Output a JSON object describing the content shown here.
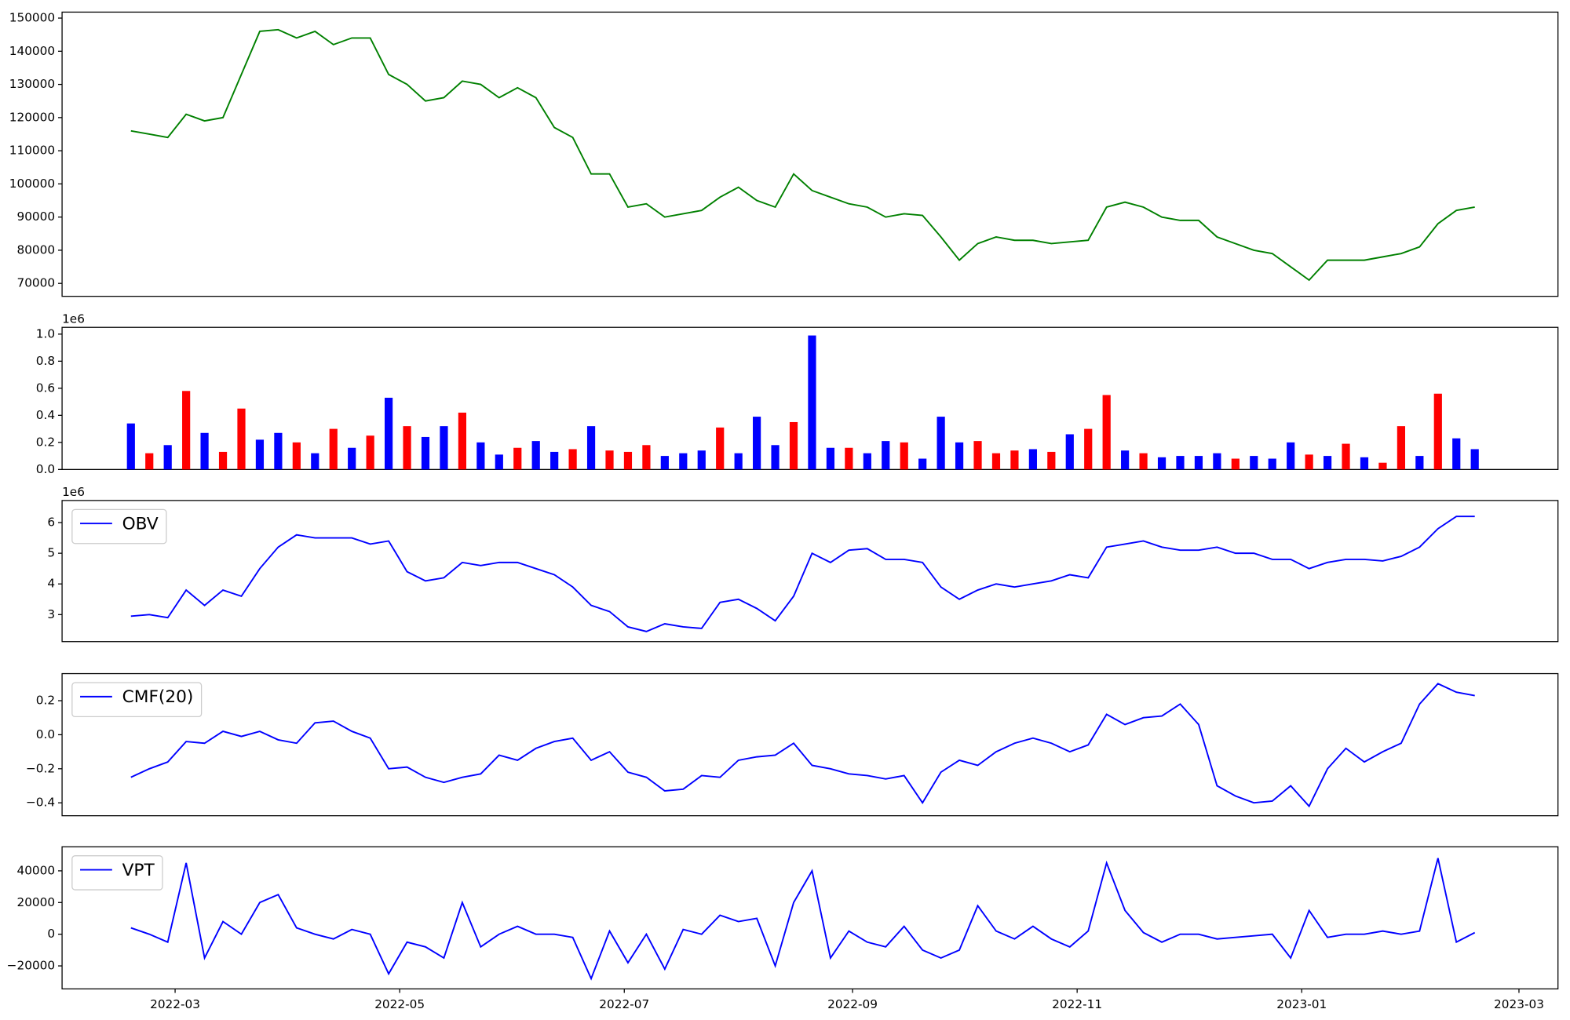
{
  "chart_data": [
    {
      "type": "line",
      "color": "#008000",
      "x": [
        47,
        52,
        57,
        62,
        67,
        72,
        77,
        82,
        87,
        92,
        97,
        102,
        107,
        112,
        117,
        122,
        127,
        132,
        137,
        142,
        147,
        152,
        157,
        162,
        167,
        172,
        177,
        182,
        187,
        192,
        197,
        202,
        207,
        212,
        217,
        222,
        227,
        232,
        237,
        242,
        247,
        252,
        257,
        262,
        267,
        272,
        277,
        282,
        287,
        292,
        297,
        302,
        307,
        312,
        317,
        322,
        327,
        332,
        337,
        342,
        347,
        352,
        357,
        362,
        367,
        372,
        377,
        382,
        387,
        392,
        397,
        402,
        407,
        412
      ],
      "values": [
        116000,
        115000,
        114000,
        121000,
        119000,
        120000,
        133000,
        146000,
        146500,
        144000,
        146000,
        142000,
        144000,
        144000,
        133000,
        130000,
        125000,
        126000,
        131000,
        130000,
        126000,
        129000,
        126000,
        117000,
        114000,
        103000,
        103000,
        93000,
        94000,
        90000,
        91000,
        92000,
        96000,
        99000,
        95000,
        93000,
        103000,
        98000,
        96000,
        94000,
        93000,
        90000,
        91000,
        90500,
        84000,
        77000,
        82000,
        84000,
        83000,
        83000,
        82000,
        82500,
        83000,
        93000,
        94500,
        93000,
        90000,
        89000,
        89000,
        84000,
        82000,
        80000,
        79000,
        75000,
        71000,
        77000,
        77000,
        77000,
        78000,
        79000,
        81000,
        88000,
        92000,
        93000
      ],
      "xlim": [
        28.3,
        434.6
      ],
      "ylim": [
        66100,
        151800
      ],
      "yticks": [
        70000,
        80000,
        90000,
        100000,
        110000,
        120000,
        130000,
        140000,
        150000
      ]
    },
    {
      "type": "bar",
      "offset_label": "1e6",
      "x": [
        47,
        52,
        57,
        62,
        67,
        72,
        77,
        82,
        87,
        92,
        97,
        102,
        107,
        112,
        117,
        122,
        127,
        132,
        137,
        142,
        147,
        152,
        157,
        162,
        167,
        172,
        177,
        182,
        187,
        192,
        197,
        202,
        207,
        212,
        217,
        222,
        227,
        232,
        237,
        242,
        247,
        252,
        257,
        262,
        267,
        272,
        277,
        282,
        287,
        292,
        297,
        302,
        307,
        312,
        317,
        322,
        327,
        332,
        337,
        342,
        347,
        352,
        357,
        362,
        367,
        372,
        377,
        382,
        387,
        392,
        397,
        402,
        407,
        412
      ],
      "values": [
        0.34,
        0.12,
        0.18,
        0.58,
        0.27,
        0.13,
        0.45,
        0.22,
        0.27,
        0.2,
        0.12,
        0.3,
        0.16,
        0.25,
        0.53,
        0.32,
        0.24,
        0.32,
        0.42,
        0.2,
        0.11,
        0.16,
        0.21,
        0.13,
        0.15,
        0.32,
        0.14,
        0.13,
        0.18,
        0.1,
        0.12,
        0.14,
        0.31,
        0.12,
        0.39,
        0.18,
        0.35,
        0.99,
        0.16,
        0.16,
        0.12,
        0.21,
        0.2,
        0.08,
        0.39,
        0.2,
        0.21,
        0.12,
        0.14,
        0.15,
        0.13,
        0.26,
        0.3,
        0.55,
        0.14,
        0.12,
        0.09,
        0.1,
        0.1,
        0.12,
        0.08,
        0.1,
        0.08,
        0.2,
        0.11,
        0.1,
        0.19,
        0.09,
        0.05,
        0.32,
        0.1,
        0.56,
        0.23,
        0.15
      ],
      "colors": [
        "#0000ff",
        "#ff0000",
        "#0000ff",
        "#ff0000",
        "#0000ff",
        "#ff0000",
        "#ff0000",
        "#0000ff",
        "#0000ff",
        "#ff0000",
        "#0000ff",
        "#ff0000",
        "#0000ff",
        "#ff0000",
        "#0000ff",
        "#ff0000",
        "#0000ff",
        "#0000ff",
        "#ff0000",
        "#0000ff",
        "#0000ff",
        "#ff0000",
        "#0000ff",
        "#0000ff",
        "#ff0000",
        "#0000ff",
        "#ff0000",
        "#ff0000",
        "#ff0000",
        "#0000ff",
        "#0000ff",
        "#0000ff",
        "#ff0000",
        "#0000ff",
        "#0000ff",
        "#0000ff",
        "#ff0000",
        "#0000ff",
        "#0000ff",
        "#ff0000",
        "#0000ff",
        "#0000ff",
        "#ff0000",
        "#0000ff",
        "#0000ff",
        "#0000ff",
        "#ff0000",
        "#ff0000",
        "#ff0000",
        "#0000ff",
        "#ff0000",
        "#0000ff",
        "#ff0000",
        "#ff0000",
        "#0000ff",
        "#ff0000",
        "#0000ff",
        "#0000ff",
        "#0000ff",
        "#0000ff",
        "#ff0000",
        "#0000ff",
        "#0000ff",
        "#0000ff",
        "#ff0000",
        "#0000ff",
        "#ff0000",
        "#0000ff",
        "#ff0000",
        "#ff0000",
        "#0000ff",
        "#ff0000",
        "#0000ff",
        "#0000ff"
      ],
      "xlim": [
        28.3,
        434.6
      ],
      "ylim": [
        0,
        1.05
      ],
      "yticks": [
        {
          "value": 0,
          "label": "0.0"
        },
        0.2,
        0.4,
        0.6,
        0.8,
        {
          "value": 1,
          "label": "1.0"
        }
      ]
    },
    {
      "type": "line",
      "offset_label": "1e6",
      "legend": "upper left",
      "x": [
        47,
        52,
        57,
        62,
        67,
        72,
        77,
        82,
        87,
        92,
        97,
        102,
        107,
        112,
        117,
        122,
        127,
        132,
        137,
        142,
        147,
        152,
        157,
        162,
        167,
        172,
        177,
        182,
        187,
        192,
        197,
        202,
        207,
        212,
        217,
        222,
        227,
        232,
        237,
        242,
        247,
        252,
        257,
        262,
        267,
        272,
        277,
        282,
        287,
        292,
        297,
        302,
        307,
        312,
        317,
        322,
        327,
        332,
        337,
        342,
        347,
        352,
        357,
        362,
        367,
        372,
        377,
        382,
        387,
        392,
        397,
        402,
        407,
        412
      ],
      "series": [
        {
          "name": "OBV",
          "color": "#0000ff",
          "values": [
            2.95,
            3.0,
            2.9,
            3.8,
            3.3,
            3.8,
            3.6,
            4.5,
            5.2,
            5.6,
            5.5,
            5.5,
            5.5,
            5.3,
            5.4,
            4.4,
            4.1,
            4.2,
            4.7,
            4.6,
            4.7,
            4.7,
            4.5,
            4.3,
            3.9,
            3.3,
            3.1,
            2.6,
            2.45,
            2.7,
            2.6,
            2.55,
            3.4,
            3.5,
            3.2,
            2.8,
            3.6,
            5.0,
            4.7,
            5.1,
            5.15,
            4.8,
            4.8,
            4.7,
            3.9,
            3.5,
            3.8,
            4.0,
            3.9,
            4.0,
            4.1,
            4.3,
            4.2,
            5.2,
            5.3,
            5.4,
            5.2,
            5.1,
            5.1,
            5.2,
            5.0,
            5.0,
            4.8,
            4.8,
            4.5,
            4.7,
            4.8,
            4.8,
            4.75,
            4.9,
            5.2,
            5.8,
            6.2,
            6.2
          ]
        }
      ],
      "xlim": [
        28.3,
        434.6
      ],
      "ylim": [
        2.12,
        6.72
      ],
      "yticks": [
        3,
        4,
        5,
        6
      ]
    },
    {
      "type": "line",
      "legend": "upper left",
      "x": [
        47,
        52,
        57,
        62,
        67,
        72,
        77,
        82,
        87,
        92,
        97,
        102,
        107,
        112,
        117,
        122,
        127,
        132,
        137,
        142,
        147,
        152,
        157,
        162,
        167,
        172,
        177,
        182,
        187,
        192,
        197,
        202,
        207,
        212,
        217,
        222,
        227,
        232,
        237,
        242,
        247,
        252,
        257,
        262,
        267,
        272,
        277,
        282,
        287,
        292,
        297,
        302,
        307,
        312,
        317,
        322,
        327,
        332,
        337,
        342,
        347,
        352,
        357,
        362,
        367,
        372,
        377,
        382,
        387,
        392,
        397,
        402,
        407,
        412
      ],
      "series": [
        {
          "name": "CMF(20)",
          "color": "#0000ff",
          "values": [
            -0.25,
            -0.2,
            -0.16,
            -0.04,
            -0.05,
            0.02,
            -0.01,
            0.02,
            -0.03,
            -0.05,
            0.07,
            0.08,
            0.02,
            -0.02,
            -0.2,
            -0.19,
            -0.25,
            -0.28,
            -0.25,
            -0.23,
            -0.12,
            -0.15,
            -0.08,
            -0.04,
            -0.02,
            -0.15,
            -0.1,
            -0.22,
            -0.25,
            -0.33,
            -0.32,
            -0.24,
            -0.25,
            -0.15,
            -0.13,
            -0.12,
            -0.05,
            -0.18,
            -0.2,
            -0.23,
            -0.24,
            -0.26,
            -0.24,
            -0.4,
            -0.22,
            -0.15,
            -0.18,
            -0.1,
            -0.05,
            -0.02,
            -0.05,
            -0.1,
            -0.06,
            0.12,
            0.06,
            0.1,
            0.11,
            0.18,
            0.06,
            -0.3,
            -0.36,
            -0.4,
            -0.39,
            -0.3,
            -0.42,
            -0.2,
            -0.08,
            -0.16,
            -0.1,
            -0.05,
            0.18,
            0.3,
            0.25,
            0.23
          ]
        }
      ],
      "xlim": [
        28.3,
        434.6
      ],
      "ylim": [
        -0.476,
        0.359
      ],
      "yticks": [
        {
          "value": -0.4,
          "label": "−0.4"
        },
        {
          "value": -0.2,
          "label": "−0.2"
        },
        {
          "value": 0,
          "label": "0.0"
        },
        0.2
      ]
    },
    {
      "type": "line",
      "legend": "upper left",
      "x": [
        47,
        52,
        57,
        62,
        67,
        72,
        77,
        82,
        87,
        92,
        97,
        102,
        107,
        112,
        117,
        122,
        127,
        132,
        137,
        142,
        147,
        152,
        157,
        162,
        167,
        172,
        177,
        182,
        187,
        192,
        197,
        202,
        207,
        212,
        217,
        222,
        227,
        232,
        237,
        242,
        247,
        252,
        257,
        262,
        267,
        272,
        277,
        282,
        287,
        292,
        297,
        302,
        307,
        312,
        317,
        322,
        327,
        332,
        337,
        342,
        347,
        352,
        357,
        362,
        367,
        372,
        377,
        382,
        387,
        392,
        397,
        402,
        407,
        412
      ],
      "series": [
        {
          "name": "VPT",
          "color": "#0000ff",
          "values": [
            4000,
            0,
            -5000,
            45000,
            -15000,
            8000,
            0,
            20000,
            25000,
            4000,
            0,
            -3000,
            3000,
            0,
            -25000,
            -5000,
            -8000,
            -15000,
            20000,
            -8000,
            0,
            5000,
            0,
            0,
            -2000,
            -28000,
            2000,
            -18000,
            0,
            -22000,
            3000,
            0,
            12000,
            8000,
            10000,
            -20000,
            20000,
            40000,
            -15000,
            2000,
            -5000,
            -8000,
            5000,
            -10000,
            -15000,
            -10000,
            18000,
            2000,
            -3000,
            5000,
            -3000,
            -8000,
            2000,
            45000,
            15000,
            1000,
            -5000,
            0,
            0,
            -3000,
            -2000,
            -1000,
            0,
            -15000,
            15000,
            -2000,
            0,
            0,
            2000,
            0,
            2000,
            48000,
            -5000,
            1000
          ]
        }
      ],
      "xlim": [
        28.3,
        434.6
      ],
      "ylim": [
        -34500,
        55200
      ],
      "yticks": [
        {
          "value": -20000,
          "label": "−20000"
        },
        0,
        20000,
        40000
      ],
      "xticks": [
        {
          "value": 59,
          "label": "2022-03"
        },
        {
          "value": 120,
          "label": "2022-05"
        },
        {
          "value": 181,
          "label": "2022-07"
        },
        {
          "value": 243,
          "label": "2022-09"
        },
        {
          "value": 304,
          "label": "2022-11"
        },
        {
          "value": 365,
          "label": "2023-01"
        },
        {
          "value": 424,
          "label": "2023-03"
        }
      ]
    }
  ]
}
